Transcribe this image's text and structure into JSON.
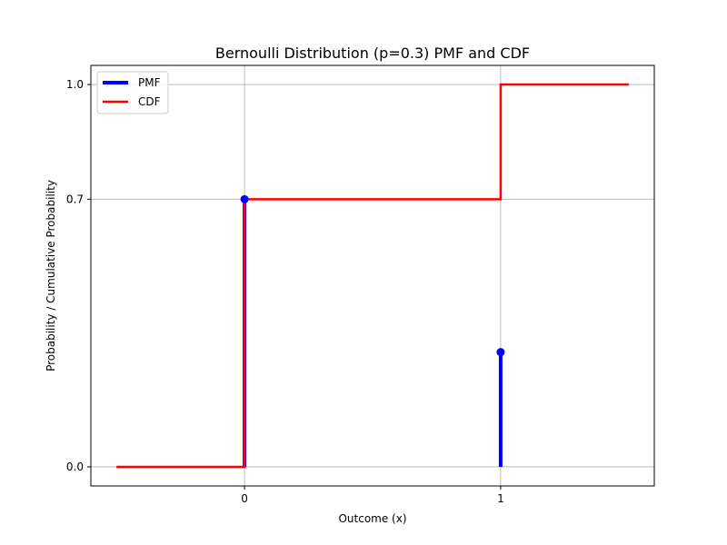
{
  "chart_data": {
    "type": "line",
    "title": "Bernoulli Distribution (p=0.3) PMF and CDF",
    "xlabel": "Outcome (x)",
    "ylabel": "Probability / Cumulative Probability",
    "xlim": [
      -0.6,
      1.6
    ],
    "ylim": [
      -0.05,
      1.05
    ],
    "xticks": [
      0,
      1
    ],
    "xtick_labels": [
      "0",
      "1"
    ],
    "yticks": [
      0.0,
      0.7,
      1.0
    ],
    "ytick_labels": [
      "0.0",
      "0.7",
      "1.0"
    ],
    "grid": true,
    "legend": "upper-left",
    "series": [
      {
        "name": "PMF",
        "style": "stem",
        "color": "#0000ff",
        "x": [
          0,
          1
        ],
        "y": [
          0.7,
          0.3
        ]
      },
      {
        "name": "CDF",
        "style": "step",
        "color": "#ff0000",
        "x": [
          -0.5,
          0,
          0,
          1,
          1,
          1.5
        ],
        "y": [
          0.0,
          0.0,
          0.7,
          0.7,
          1.0,
          1.0
        ]
      }
    ]
  }
}
